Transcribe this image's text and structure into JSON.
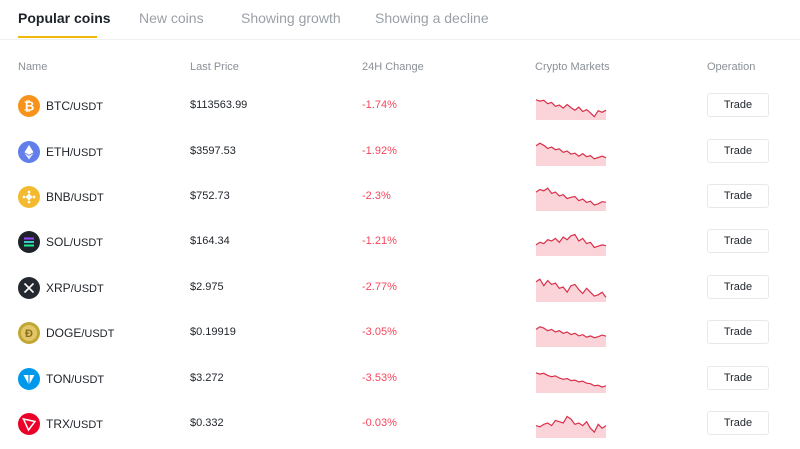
{
  "tabs": [
    {
      "label": "Popular coins",
      "active": true
    },
    {
      "label": "New coins",
      "active": false
    },
    {
      "label": "Showing growth",
      "active": false
    },
    {
      "label": "Showing a decline",
      "active": false
    }
  ],
  "table": {
    "headers": {
      "name": "Name",
      "last_price": "Last Price",
      "change_24h": "24H Change",
      "markets": "Crypto Markets",
      "operation": "Operation"
    },
    "rows": [
      {
        "symbol": "BTC",
        "quote": "/USDT",
        "price": "$113563.99",
        "change": "-1.74%",
        "trade_label": "Trade",
        "icon": "btc-icon",
        "icon_color": "#f7931a",
        "trend": [
          0.3,
          0.35,
          0.32,
          0.45,
          0.4,
          0.55,
          0.5,
          0.62,
          0.48,
          0.6,
          0.7,
          0.58,
          0.75,
          0.68,
          0.8,
          0.95,
          0.72,
          0.78,
          0.7
        ]
      },
      {
        "symbol": "ETH",
        "quote": "/USDT",
        "price": "$3597.53",
        "change": "-1.92%",
        "trade_label": "Trade",
        "icon": "eth-icon",
        "icon_color": "#627eea",
        "trend": [
          0.3,
          0.2,
          0.28,
          0.4,
          0.35,
          0.45,
          0.42,
          0.55,
          0.5,
          0.62,
          0.58,
          0.7,
          0.6,
          0.72,
          0.68,
          0.8,
          0.75,
          0.7,
          0.76
        ]
      },
      {
        "symbol": "BNB",
        "quote": "/USDT",
        "price": "$752.73",
        "change": "-2.3%",
        "trade_label": "Trade",
        "icon": "bnb-icon",
        "icon_color": "#f3ba2f",
        "trend": [
          0.35,
          0.25,
          0.3,
          0.2,
          0.4,
          0.35,
          0.5,
          0.45,
          0.6,
          0.55,
          0.52,
          0.68,
          0.62,
          0.75,
          0.7,
          0.85,
          0.8,
          0.72,
          0.74
        ]
      },
      {
        "symbol": "SOL",
        "quote": "/USDT",
        "price": "$164.34",
        "change": "-1.21%",
        "trade_label": "Trade",
        "icon": "sol-icon",
        "icon_color": "#1e2329",
        "trend": [
          0.65,
          0.55,
          0.6,
          0.45,
          0.5,
          0.4,
          0.55,
          0.35,
          0.45,
          0.3,
          0.25,
          0.5,
          0.4,
          0.6,
          0.55,
          0.75,
          0.7,
          0.65,
          0.68
        ]
      },
      {
        "symbol": "XRP",
        "quote": "/USDT",
        "price": "$2.975",
        "change": "-2.77%",
        "trade_label": "Trade",
        "icon": "xrp-icon",
        "icon_color": "#23292f",
        "trend": [
          0.3,
          0.2,
          0.45,
          0.25,
          0.4,
          0.35,
          0.55,
          0.5,
          0.7,
          0.45,
          0.4,
          0.6,
          0.75,
          0.55,
          0.7,
          0.85,
          0.8,
          0.7,
          0.9
        ]
      },
      {
        "symbol": "DOGE",
        "quote": "/USDT",
        "price": "$0.19919",
        "change": "-3.05%",
        "trade_label": "Trade",
        "icon": "doge-icon",
        "icon_color": "#c2a633",
        "trend": [
          0.4,
          0.3,
          0.35,
          0.45,
          0.4,
          0.5,
          0.45,
          0.55,
          0.5,
          0.6,
          0.55,
          0.65,
          0.6,
          0.7,
          0.65,
          0.72,
          0.68,
          0.62,
          0.66
        ]
      },
      {
        "symbol": "TON",
        "quote": "/USDT",
        "price": "$3.272",
        "change": "-3.53%",
        "trade_label": "Trade",
        "icon": "ton-icon",
        "icon_color": "#0098ea",
        "trend": [
          0.3,
          0.35,
          0.32,
          0.4,
          0.45,
          0.42,
          0.5,
          0.55,
          0.52,
          0.6,
          0.58,
          0.65,
          0.62,
          0.7,
          0.72,
          0.8,
          0.78,
          0.85,
          0.8
        ]
      },
      {
        "symbol": "TRX",
        "quote": "/USDT",
        "price": "$0.332",
        "change": "-0.03%",
        "trade_label": "Trade",
        "icon": "trx-icon",
        "icon_color": "#eb0029",
        "trend": [
          0.6,
          0.65,
          0.55,
          0.5,
          0.6,
          0.4,
          0.45,
          0.5,
          0.25,
          0.35,
          0.55,
          0.5,
          0.6,
          0.45,
          0.7,
          0.85,
          0.55,
          0.7,
          0.6
        ]
      }
    ]
  },
  "colors": {
    "negative": "#f6465d",
    "spark_line": "#d9304a",
    "spark_fill": "#fad4d8",
    "accent": "#f0b90b"
  }
}
